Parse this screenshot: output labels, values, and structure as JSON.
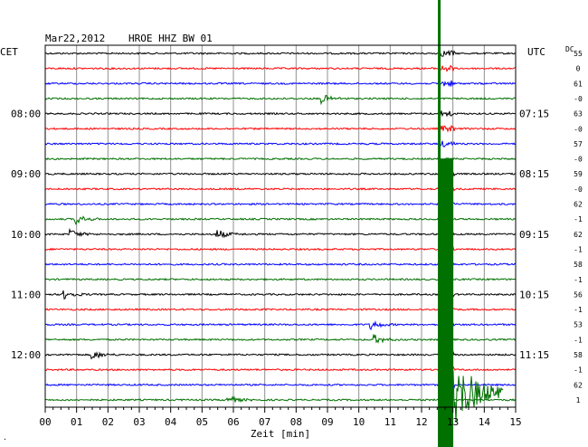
{
  "header": {
    "date": "Mar22,2012",
    "station": "HROE HHZ BW 01",
    "left_zone": "CET",
    "right_zone": "UTC",
    "dc_label": "DC"
  },
  "chart_data": {
    "type": "line",
    "title": "Mar22,2012   HROE HHZ BW 01",
    "xlabel": "Zeit [min]",
    "xlim": [
      0,
      15
    ],
    "x_ticks": [
      "00",
      "01",
      "02",
      "03",
      "04",
      "05",
      "06",
      "07",
      "08",
      "09",
      "10",
      "11",
      "12",
      "13",
      "14",
      "15"
    ],
    "trace_interval_min": 15,
    "trace_colors": [
      "#000000",
      "#ff0000",
      "#0000ff",
      "#007000"
    ],
    "left_time_labels": [
      {
        "trace": 4,
        "label": "08:00"
      },
      {
        "trace": 8,
        "label": "09:00"
      },
      {
        "trace": 12,
        "label": "10:00"
      },
      {
        "trace": 16,
        "label": "11:00"
      },
      {
        "trace": 20,
        "label": "12:00"
      }
    ],
    "right_time_labels": [
      {
        "trace": 4,
        "label": "07:15"
      },
      {
        "trace": 8,
        "label": "08:15"
      },
      {
        "trace": 12,
        "label": "09:15"
      },
      {
        "trace": 16,
        "label": "10:15"
      },
      {
        "trace": 20,
        "label": "11:15"
      }
    ],
    "dc_offsets": [
      "55",
      "0",
      "61",
      "-0",
      "63",
      "-0",
      "57",
      "-0",
      "59",
      "-0",
      "62",
      "-1",
      "62",
      "-1",
      "58",
      "-1",
      "56",
      "-1",
      "53",
      "-1",
      "58",
      "-1",
      "62",
      "1"
    ],
    "event": {
      "name": "large earthquake",
      "start_min": 12.55,
      "start_trace": 0,
      "coda_end_trace": 23,
      "color": "#007000"
    },
    "local_events": [
      {
        "trace": 3,
        "min": 8.8
      },
      {
        "trace": 11,
        "min": 1.0
      },
      {
        "trace": 12,
        "min": 0.8
      },
      {
        "trace": 12,
        "min": 5.5
      },
      {
        "trace": 16,
        "min": 0.6
      },
      {
        "trace": 18,
        "min": 10.4
      },
      {
        "trace": 19,
        "min": 10.5
      },
      {
        "trace": 20,
        "min": 1.5
      },
      {
        "trace": 23,
        "min": 5.8
      }
    ]
  }
}
